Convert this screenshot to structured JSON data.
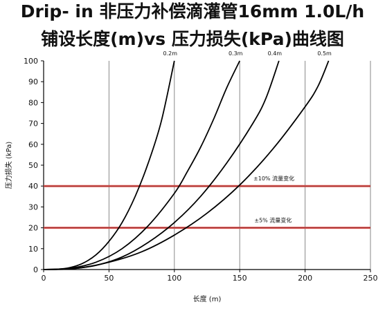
{
  "title_line1": "Drip- in 非压力补偿滴灌管16mm 1.0L/h",
  "title_line2": "铺设长度(m)vs 压力损失(kPa)曲线图",
  "chart_data": {
    "type": "line",
    "xlabel": "长度 (m)",
    "ylabel": "压力损失 (kPa)",
    "xlim": [
      0,
      250
    ],
    "ylim": [
      0,
      100
    ],
    "xticks": [
      0,
      50,
      100,
      150,
      200,
      250
    ],
    "yticks": [
      0,
      10,
      20,
      30,
      40,
      50,
      60,
      70,
      80,
      90,
      100
    ],
    "grid": "vertical",
    "series": [
      {
        "name": "0.2m",
        "x": [
          0,
          10,
          20,
          30,
          40,
          50,
          60,
          70,
          80,
          90,
          100
        ],
        "y": [
          0,
          0.1,
          0.9,
          3.0,
          7.0,
          13.5,
          22.5,
          35.0,
          51.0,
          71.0,
          100.0
        ]
      },
      {
        "name": "0.3m",
        "x": [
          0,
          20,
          40,
          60,
          80,
          100,
          110,
          120,
          130,
          140,
          150
        ],
        "y": [
          0,
          0.6,
          3.5,
          10.0,
          21.0,
          36.5,
          47.0,
          58.5,
          72.0,
          87.0,
          100.0
        ]
      },
      {
        "name": "0.4m",
        "x": [
          0,
          20,
          40,
          60,
          80,
          100,
          120,
          140,
          160,
          170,
          180
        ],
        "y": [
          0,
          0.3,
          2.0,
          6.0,
          13.0,
          22.5,
          35.0,
          51.0,
          70.0,
          82.0,
          100.0
        ]
      },
      {
        "name": "0.5m",
        "x": [
          0,
          25,
          50,
          75,
          100,
          125,
          150,
          175,
          200,
          210,
          218
        ],
        "y": [
          0,
          0.6,
          3.5,
          8.5,
          16.5,
          27.0,
          40.5,
          57.5,
          78.0,
          88.0,
          100.0
        ]
      }
    ],
    "reference_lines": [
      {
        "y": 40,
        "label": "±10% 流量变化",
        "label_x": 160
      },
      {
        "y": 20,
        "label": "±5% 流量变化",
        "label_x": 158
      }
    ],
    "colors": {
      "curve": "#000000",
      "reference": "#d9534f",
      "grid": "#888888"
    }
  }
}
